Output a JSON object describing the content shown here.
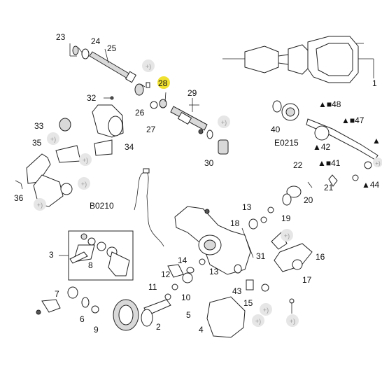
{
  "diagram": {
    "highlight_color": "#f0e130",
    "hint_color": "#cfcfcf",
    "callouts": {
      "c1": "1",
      "c2": "2",
      "c3": "3",
      "c4": "4",
      "c5": "5",
      "c6": "6",
      "c7": "7",
      "c8": "8",
      "c9": "9",
      "c10": "10",
      "c11": "11",
      "c12": "12",
      "c13a": "13",
      "c13b": "13",
      "c14": "14",
      "c15": "15",
      "c16": "16",
      "c17": "17",
      "c18": "18",
      "c19": "19",
      "c20": "20",
      "c21": "21",
      "c22": "22",
      "c23": "23",
      "c24": "24",
      "c25": "25",
      "c26": "26",
      "c27": "27",
      "c28": "28",
      "c29": "29",
      "c30": "30",
      "c31": "31",
      "c32": "32",
      "c33": "33",
      "c34": "34",
      "c35": "35",
      "c36": "36",
      "c40": "40",
      "c41": "▲■41",
      "c42": "▲42",
      "c43": "43",
      "c44": "▲44",
      "c47": "▲■47",
      "c48": "▲■48",
      "c49": "▲"
    },
    "codes": {
      "e0215": "E0215",
      "b0210": "B0210"
    },
    "hint_icon": "+)"
  }
}
